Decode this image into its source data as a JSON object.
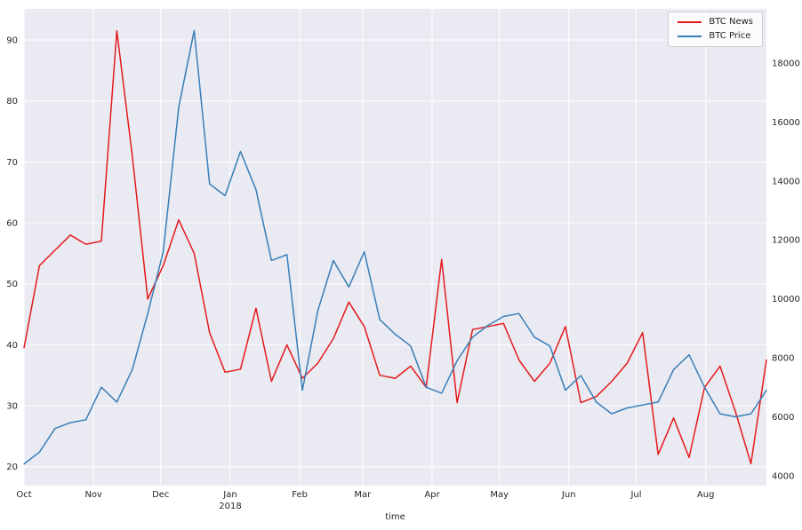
{
  "figure": {
    "background": "#ffffff",
    "plot_background": "#eaeaf2",
    "grid_color": "#ffffff"
  },
  "legend": {
    "items": [
      {
        "label": "BTC News",
        "color": "#e41a1c"
      },
      {
        "label": "BTC Price",
        "color": "#377eb8"
      }
    ]
  },
  "chart_data": {
    "type": "line",
    "title": "",
    "xlabel": "time",
    "grid": true,
    "legend_position": "top-right",
    "x_total_weeks": 47.3,
    "x_ticks": [
      {
        "label": "Oct",
        "week": 0
      },
      {
        "label": "Nov",
        "week": 4.43
      },
      {
        "label": "Dec",
        "week": 8.71
      },
      {
        "label": "Jan",
        "week": 13.14,
        "sublabel": "2018"
      },
      {
        "label": "Feb",
        "week": 17.57
      },
      {
        "label": "Mar",
        "week": 21.57
      },
      {
        "label": "Apr",
        "week": 26.0
      },
      {
        "label": "May",
        "week": 30.29
      },
      {
        "label": "Jun",
        "week": 34.71
      },
      {
        "label": "Jul",
        "week": 39.0
      },
      {
        "label": "Aug",
        "week": 43.43
      }
    ],
    "left_axis": {
      "series": "BTC News",
      "ticks": [
        20,
        30,
        40,
        50,
        60,
        70,
        80,
        90
      ],
      "range": [
        16.9,
        95.1
      ]
    },
    "right_axis": {
      "series": "BTC Price",
      "ticks": [
        4000,
        6000,
        8000,
        10000,
        12000,
        14000,
        16000,
        18000
      ],
      "range": [
        3665,
        19835
      ]
    },
    "series": [
      {
        "name": "BTC News",
        "axis": "left",
        "color": "#e41a1c",
        "values": [
          39.5,
          53,
          55.5,
          58,
          56.5,
          57,
          91.5,
          71,
          47.5,
          53,
          60.5,
          55,
          42,
          35.5,
          36,
          46,
          34,
          40,
          34.5,
          37,
          41,
          47,
          43,
          35,
          34.5,
          36.5,
          33,
          54,
          30.5,
          42.5,
          43,
          43.5,
          37.5,
          34,
          37,
          43,
          30.5,
          31.5,
          34,
          37,
          42,
          22,
          28,
          21.5,
          33,
          36.5,
          29,
          20.5,
          37.5
        ]
      },
      {
        "name": "BTC Price",
        "axis": "right",
        "color": "#377eb8",
        "values": [
          4400,
          4800,
          5600,
          5800,
          5900,
          7000,
          6500,
          7600,
          9500,
          11600,
          16500,
          19100,
          13900,
          13500,
          15000,
          13700,
          11300,
          11500,
          6900,
          9600,
          11300,
          10400,
          11600,
          9300,
          8800,
          8400,
          7000,
          6800,
          7900,
          8700,
          9100,
          9400,
          9500,
          8700,
          8400,
          6900,
          7400,
          6500,
          6100,
          6300,
          6400,
          6500,
          7600,
          8100,
          7000,
          6100,
          6000,
          6100,
          6900
        ]
      }
    ]
  }
}
